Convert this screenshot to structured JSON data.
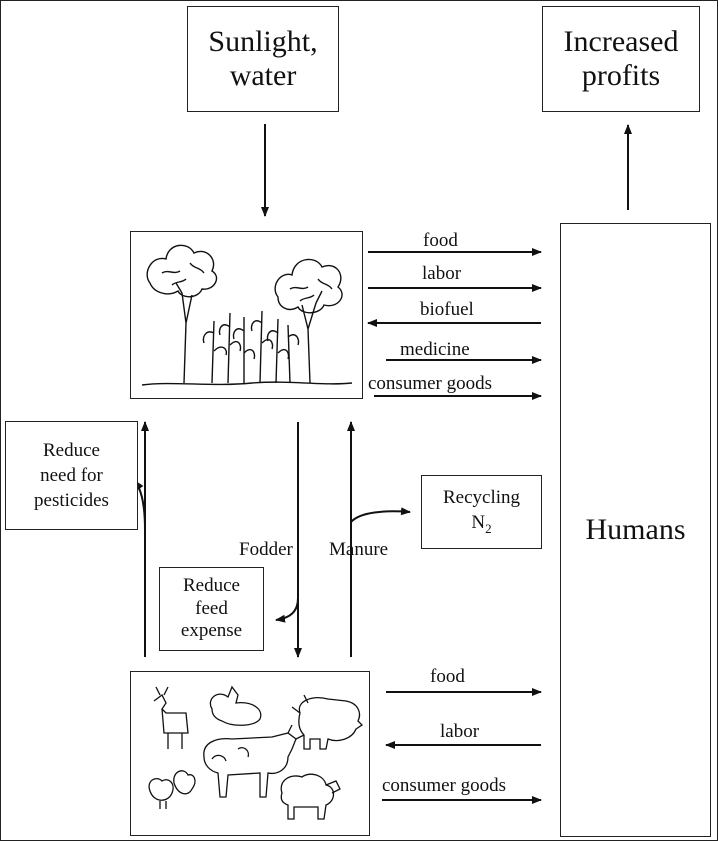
{
  "nodes": {
    "sunlight": [
      "Sunlight,",
      "water"
    ],
    "profits": [
      "Increased",
      "profits"
    ],
    "humans": "Humans",
    "pesticides": [
      "Reduce",
      "need for",
      "pesticides"
    ],
    "recycling_main": "Recycling",
    "recycling_sub": "N",
    "recycling_subscript": "2",
    "feed": [
      "Reduce",
      "feed",
      "expense"
    ]
  },
  "crop_flows": [
    "food",
    "labor",
    "biofuel",
    "medicine",
    "consumer goods"
  ],
  "livestock_flows": [
    "food",
    "labor",
    "consumer goods"
  ],
  "vertical_labels": {
    "fodder": "Fodder",
    "manure": "Manure"
  },
  "illustrations": {
    "crop": "trees-and-corn-illustration",
    "livestock": "farm-animals-illustration"
  }
}
